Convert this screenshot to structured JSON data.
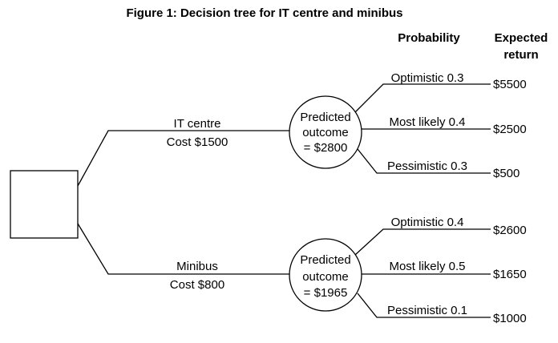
{
  "title": "Figure 1: Decision tree for IT centre and minibus",
  "headers": {
    "probability": "Probability",
    "expected_line1": "Expected",
    "expected_line2": "return"
  },
  "branches": [
    {
      "option": "IT centre",
      "cost": "Cost $1500",
      "node": {
        "line1": "Predicted",
        "line2": "outcome",
        "line3": "= $2800"
      },
      "outcomes": [
        {
          "label": "Optimistic 0.3",
          "ret": "$5500"
        },
        {
          "label": "Most likely 0.4",
          "ret": "$2500"
        },
        {
          "label": "Pessimistic 0.3",
          "ret": "$500"
        }
      ]
    },
    {
      "option": "Minibus",
      "cost": "Cost $800",
      "node": {
        "line1": "Predicted",
        "line2": "outcome",
        "line3": "= $1965"
      },
      "outcomes": [
        {
          "label": "Optimistic 0.4",
          "ret": "$2600"
        },
        {
          "label": "Most likely 0.5",
          "ret": "$1650"
        },
        {
          "label": "Pessimistic 0.1",
          "ret": "$1000"
        }
      ]
    }
  ]
}
